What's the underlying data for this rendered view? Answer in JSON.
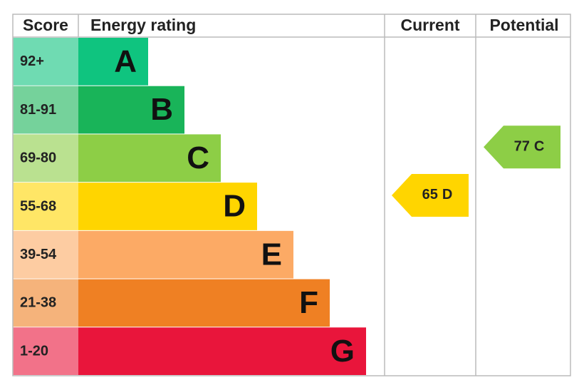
{
  "header": {
    "score": "Score",
    "rating": "Energy rating",
    "current": "Current",
    "potential": "Potential"
  },
  "bands": [
    {
      "score": "92+",
      "letter": "A",
      "color": "#0fc47f"
    },
    {
      "score": "81-91",
      "letter": "B",
      "color": "#19b459"
    },
    {
      "score": "69-80",
      "letter": "C",
      "color": "#8dce46"
    },
    {
      "score": "55-68",
      "letter": "D",
      "color": "#ffd500"
    },
    {
      "score": "39-54",
      "letter": "E",
      "color": "#fcaa65"
    },
    {
      "score": "21-38",
      "letter": "F",
      "color": "#ef8023"
    },
    {
      "score": "1-20",
      "letter": "G",
      "color": "#e9153b"
    }
  ],
  "current": {
    "value": "65",
    "rating": "D"
  },
  "potential": {
    "value": "77",
    "rating": "C"
  }
}
